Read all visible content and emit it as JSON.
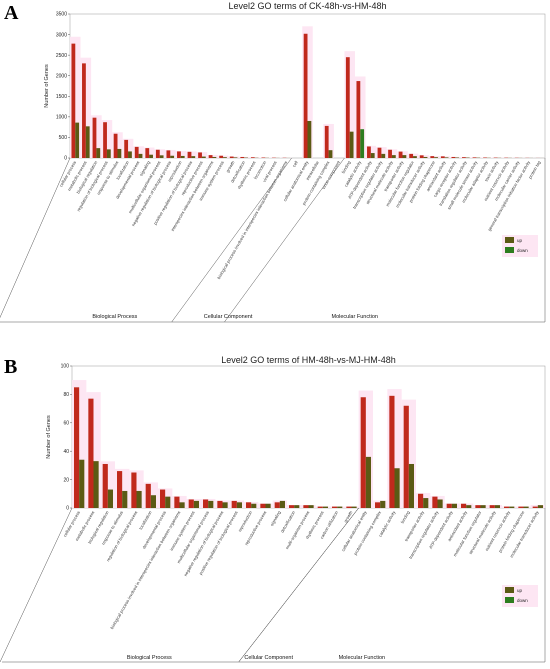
{
  "panels": [
    {
      "letter": "A",
      "title": "Level2 GO terms of CK-48h-vs-HM-48h",
      "ylabel": "Number of Genes",
      "yticks": [
        "0",
        "500",
        "1000",
        "1500",
        "2000",
        "2500",
        "3000",
        "3500"
      ],
      "groups": [
        "Biological Process",
        "Cellular Component",
        "Molecular Function"
      ],
      "legend": {
        "up": "up",
        "down": "down"
      }
    },
    {
      "letter": "B",
      "title": "Level2 GO terms of HM-48h-vs-MJ-HM-48h",
      "ylabel": "Number of Genes",
      "yticks": [
        "0",
        "20",
        "40",
        "60",
        "80",
        "100"
      ],
      "groups": [
        "Biological Process",
        "Cellular Component",
        "Molecular Function"
      ],
      "legend": {
        "up": "up",
        "down": "down"
      }
    }
  ],
  "colors": {
    "up": "#c0291c",
    "down": "#5b5a14",
    "down_alt": "#2e7d1f"
  },
  "chart_data": [
    {
      "type": "bar",
      "title": "Level2 GO terms of CK-48h-vs-HM-48h",
      "xlabel": "",
      "ylabel": "Number of Genes",
      "ylim": [
        0,
        3500
      ],
      "categories": [
        "cellular process",
        "metabolic process",
        "biological regulation",
        "regulation of biological process",
        "response to stimulus",
        "localization",
        "developmental process",
        "signaling",
        "multicellular organismal process",
        "negative regulation of biological process",
        "reproduction",
        "positive regulation of biological process",
        "reproductive process",
        "interspecies interaction between organisms",
        "immune system process",
        "growth",
        "detoxification",
        "rhythmic process",
        "locomotion",
        "viral process",
        "biological process involved in interspecies interaction between organisms",
        "cell",
        "cellular anatomical entity",
        "intracellular",
        "protein-containing complex",
        "virion component",
        "binding",
        "catalytic activity",
        "ATP-dependent activity",
        "transcription regulator activity",
        "structural molecule activity",
        "transporter activity",
        "molecular function regulator",
        "molecular transducer activity",
        "protein folding chaperone",
        "antioxidant activity",
        "cargo receptor activity",
        "translation regulator activity",
        "small molecule sensor activity",
        "molecular adaptor activity",
        "toxin activity",
        "nutrient reservoir activity",
        "molecular carrier activity",
        "general transcription initiation factor activity",
        "protein tag"
      ],
      "series": [
        {
          "name": "up",
          "values": [
            2780,
            2300,
            980,
            870,
            590,
            440,
            270,
            240,
            200,
            185,
            160,
            150,
            135,
            70,
            55,
            35,
            25,
            18,
            12,
            8,
            6,
            0,
            3020,
            0,
            780,
            0,
            2450,
            1870,
            280,
            250,
            200,
            155,
            100,
            65,
            45,
            40,
            25,
            20,
            15,
            12,
            10,
            8,
            6,
            4,
            2
          ]
        },
        {
          "name": "down",
          "values": [
            860,
            770,
            240,
            210,
            220,
            160,
            100,
            80,
            65,
            55,
            50,
            45,
            35,
            25,
            20,
            15,
            10,
            6,
            5,
            3,
            2,
            0,
            900,
            0,
            190,
            0,
            640,
            700,
            120,
            100,
            70,
            70,
            45,
            25,
            20,
            15,
            12,
            10,
            8,
            6,
            5,
            4,
            3,
            2,
            1
          ]
        }
      ],
      "legend": "bottom-right",
      "grid": false
    },
    {
      "type": "bar",
      "title": "Level2 GO terms of HM-48h-vs-MJ-HM-48h",
      "xlabel": "",
      "ylabel": "Number of Genes",
      "ylim": [
        0,
        100
      ],
      "categories": [
        "cellular process",
        "metabolic process",
        "biological regulation",
        "response to stimulus",
        "regulation of biological process",
        "localization",
        "developmental process",
        "biological process involved in interspecies interaction between organisms",
        "immune system process",
        "multicellular organismal process",
        "negative regulation of biological process",
        "positive regulation of biological process",
        "reproduction",
        "reproductive process",
        "signaling",
        "detoxification",
        "multi-organism process",
        "rhythmic process",
        "carbon utilization",
        "growth",
        "cellular anatomical entity",
        "protein-containing complex",
        "catalytic activity",
        "binding",
        "transporter activity",
        "transcription regulator activity",
        "ATP-dependent activity",
        "antioxidant activity",
        "molecular function regulator",
        "structural molecule activity",
        "nutrient reservoir activity",
        "protein folding chaperone",
        "molecular transducer activity"
      ],
      "series": [
        {
          "name": "up",
          "values": [
            85,
            77,
            31,
            26,
            25,
            17,
            13,
            8,
            6,
            6,
            5,
            5,
            4,
            3,
            4,
            2,
            2,
            1,
            1,
            1,
            78,
            4,
            79,
            72,
            10,
            8,
            3,
            3,
            2,
            2,
            1,
            1,
            1
          ]
        },
        {
          "name": "down",
          "values": [
            34,
            33,
            13,
            12,
            12,
            9,
            8,
            4,
            5,
            5,
            4,
            4,
            3,
            3,
            5,
            2,
            2,
            1,
            1,
            1,
            36,
            5,
            28,
            31,
            7,
            6,
            3,
            2,
            2,
            2,
            1,
            1,
            2
          ]
        }
      ],
      "legend": "bottom-right",
      "grid": false
    }
  ]
}
